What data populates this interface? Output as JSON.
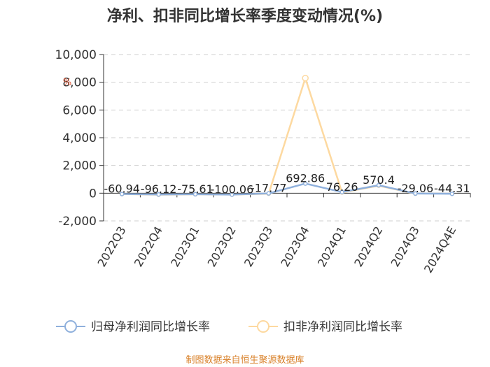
{
  "chart_data": {
    "type": "line",
    "title": "净利、扣非同比增长率季度变动情况(%)",
    "categories": [
      "2022Q3",
      "2022Q4",
      "2023Q1",
      "2023Q2",
      "2023Q3",
      "2023Q4",
      "2024Q1",
      "2024Q2",
      "2024Q3",
      "2024Q4E"
    ],
    "ylim": [
      -2000,
      10000
    ],
    "yticks": [
      -2000,
      0,
      2000,
      4000,
      6000,
      8000,
      10000
    ],
    "ytick_labels": [
      "-2,000",
      "0",
      "2,000",
      "4,000",
      "6,000",
      "8,000",
      "10,000"
    ],
    "grid": true,
    "legend_position": "bottom",
    "series": [
      {
        "name": "归母净利润同比增长率",
        "color": "#8fb0dc",
        "values": [
          -60.94,
          -96.12,
          -75.61,
          -100.06,
          -17.77,
          692.86,
          76.26,
          570.4,
          -29.06,
          -44.31
        ],
        "labels": [
          "-60.94",
          "-96.12",
          "-75.61",
          "-100.06",
          "-17.77",
          "692.86",
          "76.26",
          "570.4",
          "-29.06",
          "-44.31"
        ]
      },
      {
        "name": "扣非净利润同比增长率",
        "color": "#fdd9a0",
        "values": [
          -65,
          -110,
          -80,
          -105,
          -40,
          8300,
          50,
          540,
          -35,
          null
        ],
        "labels": []
      }
    ],
    "annotation_mark": "%"
  },
  "source_text": "制图数据来自恒生聚源数据库"
}
